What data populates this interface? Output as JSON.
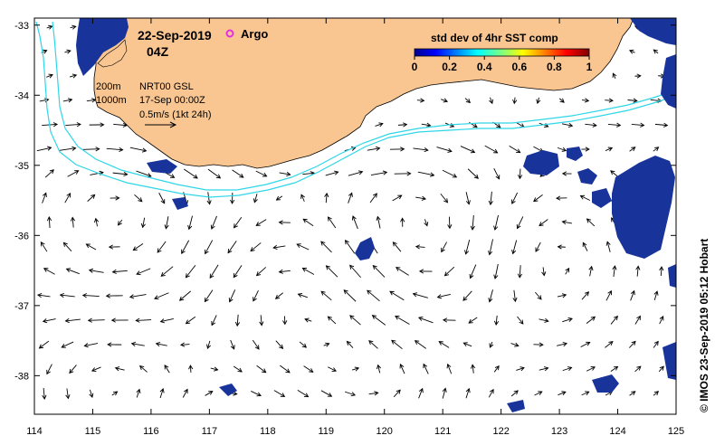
{
  "header": {
    "date": "22-Sep-2019",
    "time": "04Z",
    "argo_label": "Argo"
  },
  "legend": {
    "contour_200": "200m",
    "contour_1000": "1000m",
    "product": "NRT00 GSL",
    "product_date": "17-Sep 00:00Z",
    "scale": "0.5m/s (1kt 24h)"
  },
  "colorbar": {
    "title": "std dev of 4hr SST comp",
    "ticks": [
      "0",
      "0.2",
      "0.4",
      "0.6",
      "0.8",
      "1"
    ]
  },
  "credit": "© IMOS 23-Sep-2019 05:12 Hobart",
  "axes": {
    "x_ticks": [
      "114",
      "115",
      "116",
      "117",
      "118",
      "119",
      "120",
      "121",
      "122",
      "123",
      "124",
      "125"
    ],
    "y_ticks": [
      "-33",
      "-34",
      "-35",
      "-36",
      "-37",
      "-38"
    ]
  },
  "colors": {
    "land": "#f9c692",
    "contour": "#2fd6e8",
    "sst_patch": "#18339a",
    "argo": "#e030e0"
  }
}
